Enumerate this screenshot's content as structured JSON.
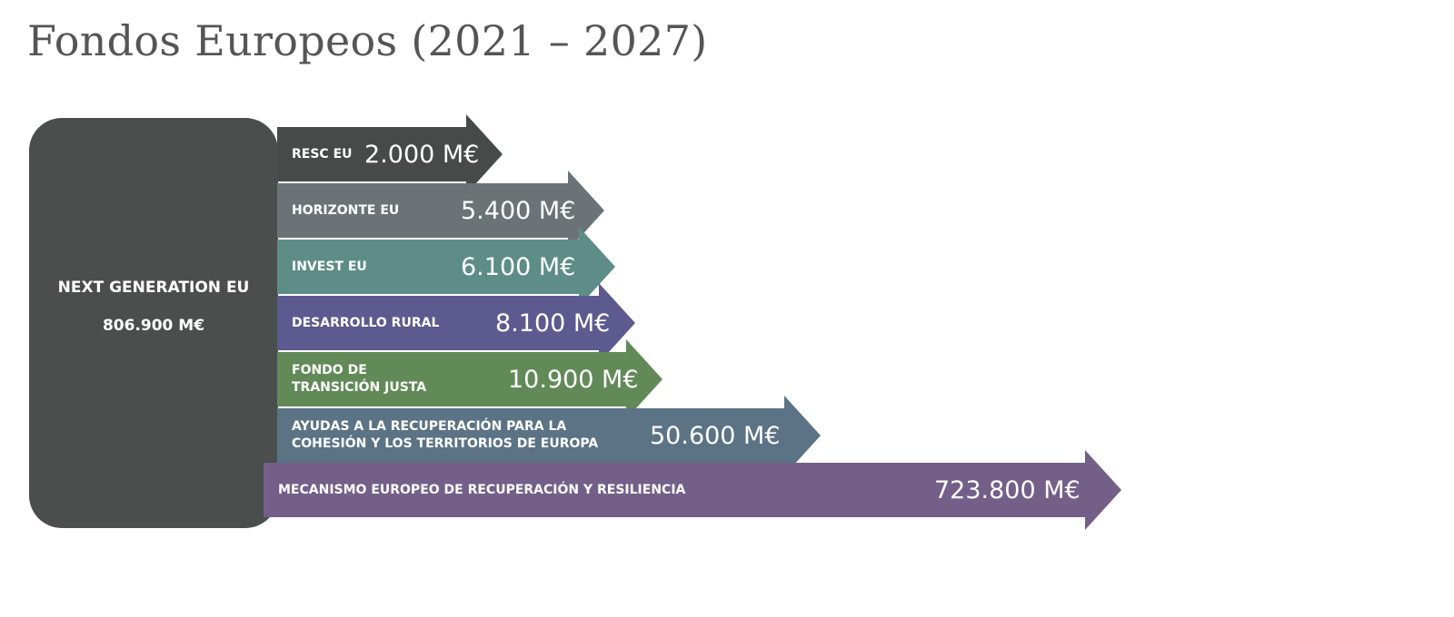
{
  "page": {
    "title": "Fondos Europeos (2021 – 2027)"
  },
  "source": {
    "name": "NEXT GENERATION EU",
    "amount": "806.900 M€",
    "color": "#4a4f4e"
  },
  "funds": [
    {
      "label": "RESC EU",
      "amount": "2.000 M€",
      "value": 2000,
      "color": "#464b4a",
      "icon": "arrow-right"
    },
    {
      "label": "HORIZONTE EU",
      "amount": "5.400 M€",
      "value": 5400,
      "color": "#6c7377",
      "icon": "arrow-right"
    },
    {
      "label": "INVEST EU",
      "amount": "6.100 M€",
      "value": 6100,
      "color": "#5d8d86",
      "icon": "arrow-right"
    },
    {
      "label": "DESARROLLO RURAL",
      "amount": "8.100 M€",
      "value": 8100,
      "color": "#5c5a8e",
      "icon": "arrow-right"
    },
    {
      "label": "FONDO DE\nTRANSICIÓN JUSTA",
      "amount": "10.900 M€",
      "value": 10900,
      "color": "#628a58",
      "icon": "arrow-right"
    },
    {
      "label": "AYUDAS A LA RECUPERACIÓN PARA LA\nCOHESIÓN Y LOS TERRITORIOS DE EUROPA",
      "amount": "50.600 M€",
      "value": 50600,
      "color": "#5c7385",
      "icon": "arrow-right"
    },
    {
      "label": "MECANISMO EUROPEO DE RECUPERACIÓN Y RESILIENCIA",
      "amount": "723.800 M€",
      "value": 723800,
      "color": "#735f88",
      "icon": "arrow-right"
    }
  ]
}
